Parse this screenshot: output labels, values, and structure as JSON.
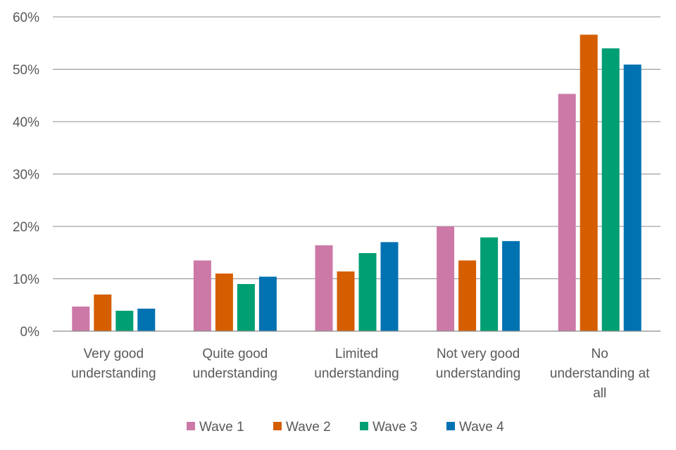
{
  "chart_data": {
    "type": "bar",
    "categories": [
      [
        "Very good",
        "understanding"
      ],
      [
        "Quite good",
        "understanding"
      ],
      [
        "Limited",
        "understanding"
      ],
      [
        "Not very good",
        "understanding"
      ],
      [
        "No",
        "understanding at",
        "all"
      ]
    ],
    "series": [
      {
        "name": "Wave 1",
        "color": "#cc79a7",
        "values": [
          4.7,
          13.5,
          16.4,
          20.0,
          45.3
        ]
      },
      {
        "name": "Wave 2",
        "color": "#d55e00",
        "values": [
          7.0,
          11.0,
          11.4,
          13.5,
          56.6
        ]
      },
      {
        "name": "Wave 3",
        "color": "#009e73",
        "values": [
          3.9,
          9.0,
          14.9,
          17.9,
          54.0
        ]
      },
      {
        "name": "Wave 4",
        "color": "#0072b2",
        "values": [
          4.3,
          10.4,
          17.0,
          17.2,
          50.9
        ]
      }
    ],
    "y_ticks": [
      "0%",
      "10%",
      "20%",
      "30%",
      "40%",
      "50%",
      "60%"
    ],
    "ylim": [
      0,
      60
    ],
    "grid": true,
    "legend_position": "bottom"
  }
}
